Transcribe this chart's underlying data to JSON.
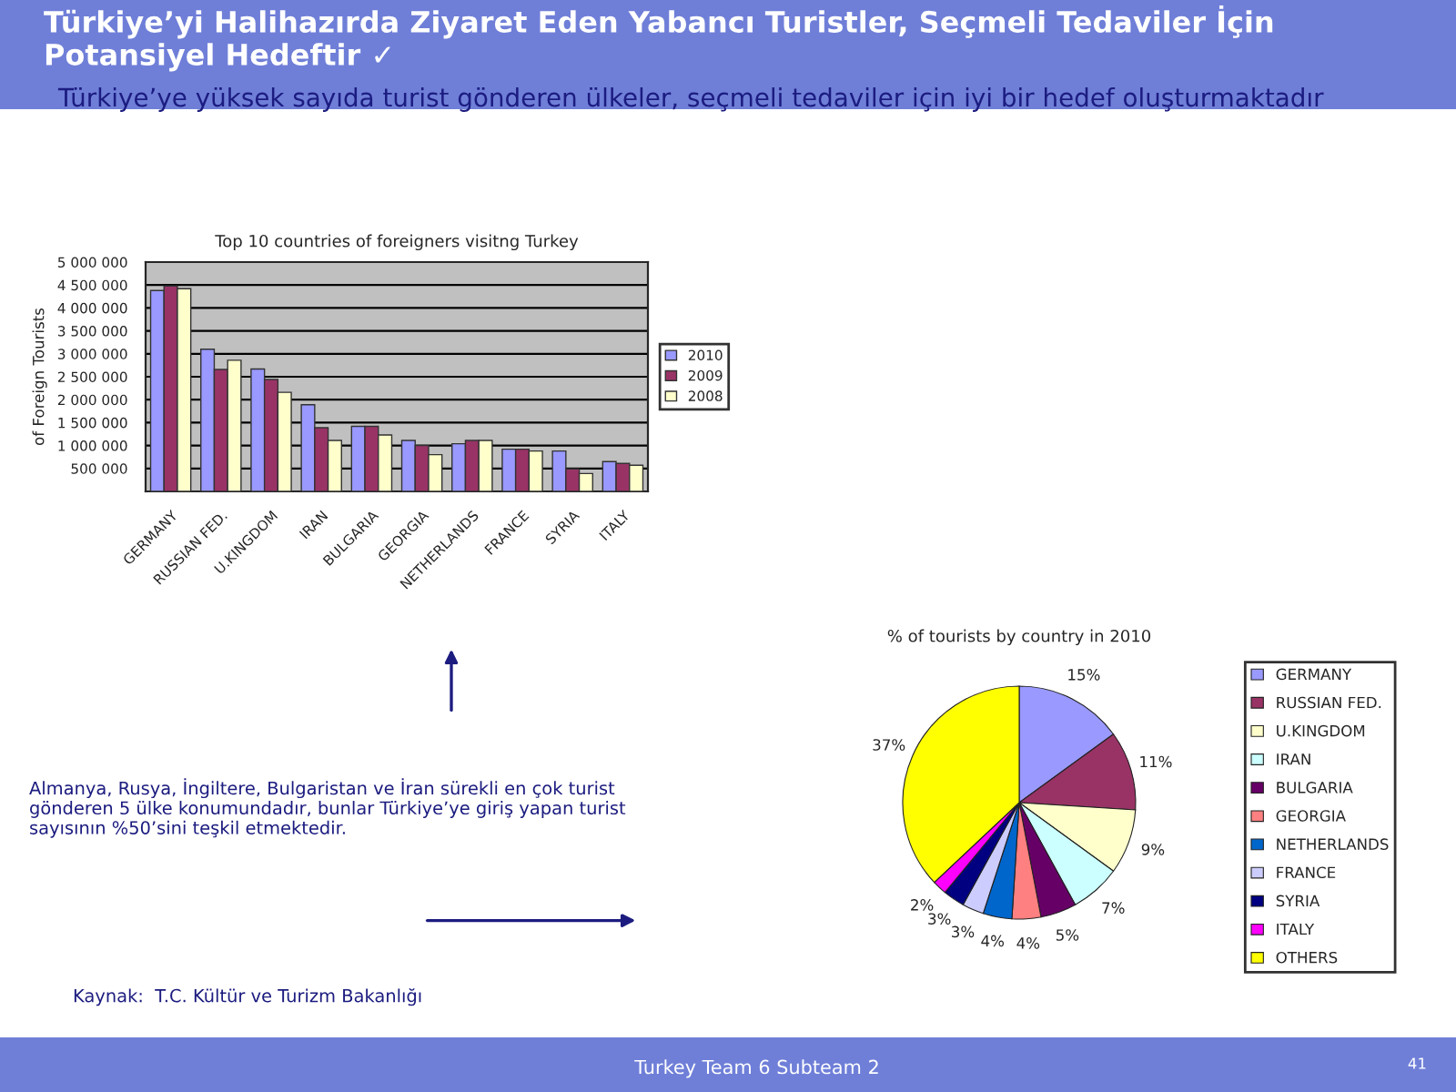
{
  "chart_data": [
    {
      "type": "bar",
      "title": "Top 10 countries of foreigners visitng Turkey",
      "ylabel": "of Foreign Tourists",
      "categories": [
        "GERMANY",
        "RUSSIAN FED.",
        "U.KINGDOM",
        "IRAN",
        "BULGARIA",
        "GEORGIA",
        "NETHERLANDS",
        "FRANCE",
        "SYRIA",
        "ITALY"
      ],
      "series": [
        {
          "name": "2010",
          "color": "#9999ff",
          "values": [
            4380000,
            3100000,
            2670000,
            1890000,
            1420000,
            1110000,
            1040000,
            920000,
            880000,
            650000
          ]
        },
        {
          "name": "2009",
          "color": "#993366",
          "values": [
            4480000,
            2660000,
            2440000,
            1390000,
            1420000,
            1000000,
            1110000,
            920000,
            490000,
            610000
          ]
        },
        {
          "name": "2008",
          "color": "#ffffcc",
          "values": [
            4420000,
            2860000,
            2160000,
            1110000,
            1230000,
            800000,
            1110000,
            880000,
            390000,
            570000
          ]
        }
      ],
      "ylim": [
        0,
        5000000
      ],
      "yticks": [
        {
          "value": 0,
          "label": null
        },
        {
          "value": 500000,
          "label": "500 000"
        },
        {
          "value": 1000000,
          "label": "1 000 000"
        },
        {
          "value": 1500000,
          "label": "1 500 000"
        },
        {
          "value": 2000000,
          "label": "2 000 000"
        },
        {
          "value": 2500000,
          "label": "2 500 000"
        },
        {
          "value": 3000000,
          "label": "3 000 000"
        },
        {
          "value": 3500000,
          "label": "3 500 000"
        },
        {
          "value": 4000000,
          "label": "4 000 000"
        },
        {
          "value": 4500000,
          "label": "4 500 000"
        },
        {
          "value": 5000000,
          "label": "5 000 000"
        }
      ],
      "grid": "y",
      "legend": "right",
      "annotations": [
        "Türkiye’yi Halihazırda Ziyaret Eden Yabancı Turistler, Seçmeli Tedaviler İçin Potansiyel Hedeftir ✓",
        "Türkiye’ye yüksek sayıda turist gönderen ülkeler, seçmeli tedaviler için iyi bir hedef oluşturmaktadır",
        "Almanya, Rusya, İngiltere, Bulgaristan ve İran sürekli en çok turist gönderen 5 ülke konumundadır, bunlar Türkiye’ye giriş yapan turist sayısının %50’sini teşkil etmektedir.",
        "Kaynak:  T.C. Kültür ve Turizm Bakanlığı",
        "Turkey Team 6 Subteam 2",
        "41"
      ]
    },
    {
      "type": "pie",
      "title": "% of tourists by country in 2010",
      "categories": [
        "GERMANY",
        "RUSSIAN FED.",
        "U.KINGDOM",
        "IRAN",
        "BULGARIA",
        "GEORGIA",
        "NETHERLANDS",
        "FRANCE",
        "SYRIA",
        "ITALY",
        "OTHERS"
      ],
      "values": [
        15,
        11,
        9,
        7,
        5,
        4,
        4,
        3,
        3,
        2,
        37
      ],
      "colors": [
        "#9999ff",
        "#993366",
        "#ffffcc",
        "#ccffff",
        "#660066",
        "#ff8080",
        "#0066cc",
        "#ccccff",
        "#000080",
        "#ff00ff",
        "#ffff00"
      ],
      "value_labels": [
        "15%",
        "11%",
        "9%",
        "7%",
        "5%",
        "4%",
        "4%",
        "3%",
        "3%",
        "2%",
        "37%"
      ],
      "legend": "right"
    }
  ]
}
